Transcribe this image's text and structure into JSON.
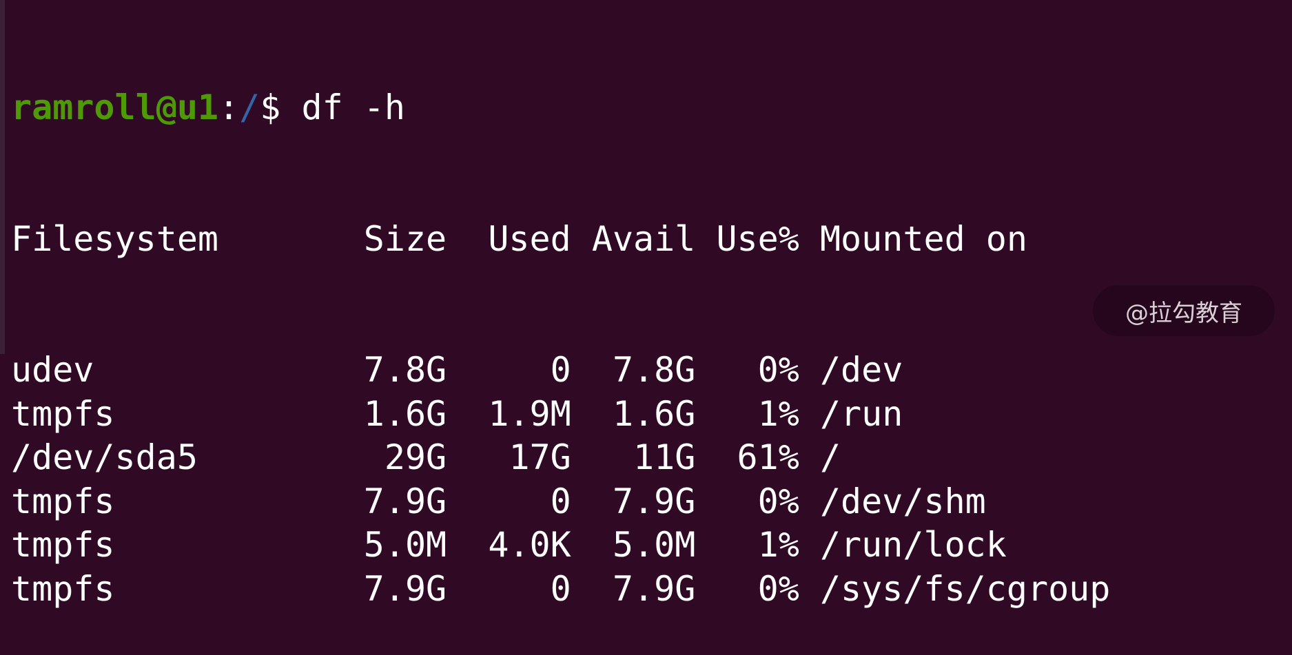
{
  "prompt": {
    "user_host": "ramroll@u1",
    "sep": ":",
    "path": "/",
    "symbol": "$ ",
    "command": "df -h"
  },
  "table": {
    "headers": [
      "Filesystem",
      "Size",
      "Used",
      "Avail",
      "Use%",
      "Mounted on"
    ],
    "rows": [
      [
        "udev",
        "7.8G",
        "0",
        "7.8G",
        "0%",
        "/dev"
      ],
      [
        "tmpfs",
        "1.6G",
        "1.9M",
        "1.6G",
        "1%",
        "/run"
      ],
      [
        "/dev/sda5",
        "29G",
        "17G",
        "11G",
        "61%",
        "/"
      ],
      [
        "tmpfs",
        "7.9G",
        "0",
        "7.9G",
        "0%",
        "/dev/shm"
      ],
      [
        "tmpfs",
        "5.0M",
        "4.0K",
        "5.0M",
        "1%",
        "/run/lock"
      ],
      [
        "tmpfs",
        "7.9G",
        "0",
        "7.9G",
        "0%",
        "/sys/fs/cgroup"
      ]
    ]
  },
  "watermark": "@拉勾教育",
  "colors": {
    "background": "#300a24",
    "user_host": "#4e9a06",
    "path": "#3465a4",
    "text": "#ffffff"
  }
}
